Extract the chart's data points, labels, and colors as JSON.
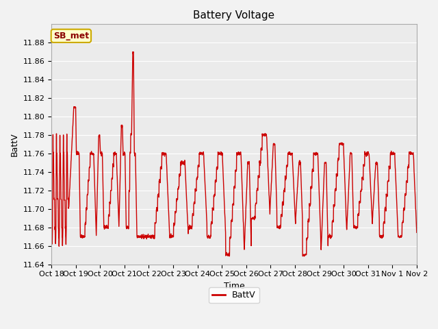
{
  "title": "Battery Voltage",
  "xlabel": "Time",
  "ylabel": "BattV",
  "ylim": [
    11.64,
    11.9
  ],
  "yticks": [
    11.64,
    11.66,
    11.68,
    11.7,
    11.72,
    11.74,
    11.76,
    11.78,
    11.8,
    11.82,
    11.84,
    11.86,
    11.88
  ],
  "xtick_labels": [
    "Oct 18",
    "Oct 19",
    "Oct 20",
    "Oct 21",
    "Oct 22",
    "Oct 23",
    "Oct 24",
    "Oct 25",
    "Oct 26",
    "Oct 27",
    "Oct 28",
    "Oct 29",
    "Oct 30",
    "Oct 31",
    "Nov 1",
    "Nov 2"
  ],
  "line_color": "#CC0000",
  "line_width": 1.0,
  "bg_color": "#EBEBEB",
  "grid_color": "#FFFFFF",
  "legend_label": "BattV",
  "annotation_text": "SB_met",
  "annotation_bg": "#FFFFCC",
  "annotation_border": "#CCAA00",
  "title_fontsize": 11,
  "label_fontsize": 9,
  "tick_fontsize": 8,
  "fig_width": 6.4,
  "fig_height": 4.8,
  "dpi": 100
}
